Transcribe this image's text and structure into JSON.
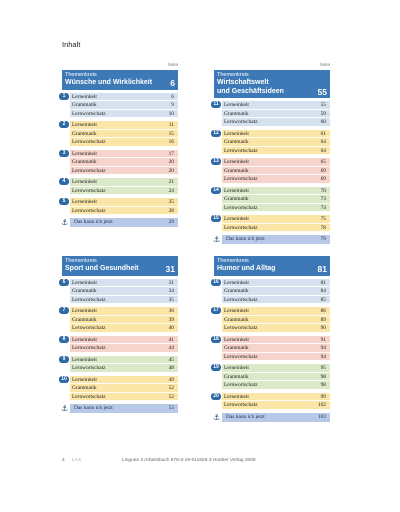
{
  "page_title": "Inhalt",
  "seite_label": "Seite",
  "kann_label": "Das kann ich jetzt",
  "blocks": [
    {
      "kreis": "Themenkreis",
      "name": "Wünsche und Wirklichkeit",
      "name2": "",
      "page": "6",
      "kann_page": "29",
      "units": [
        {
          "num": "1",
          "color": "#d6e1ef",
          "rows": [
            [
              "Lerneinheit",
              "6"
            ],
            [
              "Grammatik",
              "9"
            ],
            [
              "Lernwortschatz",
              "10"
            ]
          ]
        },
        {
          "num": "2",
          "color": "#fbe6a7",
          "rows": [
            [
              "Lerneinheit",
              "11"
            ],
            [
              "Grammatik",
              "15"
            ],
            [
              "Lernwortschatz",
              "16"
            ]
          ]
        },
        {
          "num": "3",
          "color": "#f6d4cb",
          "rows": [
            [
              "Lerneinheit",
              "17"
            ],
            [
              "Grammatik",
              "20"
            ],
            [
              "Lernwortschatz",
              "20"
            ]
          ]
        },
        {
          "num": "4",
          "color": "#dbe9c9",
          "rows": [
            [
              "Lerneinheit",
              "21"
            ],
            [
              "Lernwortschatz",
              "24"
            ]
          ]
        },
        {
          "num": "5",
          "color": "#fbe6a7",
          "rows": [
            [
              "Lerneinheit",
              "25"
            ],
            [
              "Lernwortschatz",
              "28"
            ]
          ]
        }
      ]
    },
    {
      "kreis": "Themenkreis",
      "name": "Wirtschaftswelt",
      "name2": "und Geschäftsideen",
      "page": "55",
      "kann_page": "79",
      "units": [
        {
          "num": "11",
          "color": "#d6e1ef",
          "rows": [
            [
              "Lerneinheit",
              "55"
            ],
            [
              "Grammatik",
              "59"
            ],
            [
              "Lernwortschatz",
              "60"
            ]
          ]
        },
        {
          "num": "12",
          "color": "#fbe6a7",
          "rows": [
            [
              "Lerneinheit",
              "61"
            ],
            [
              "Grammatik",
              "64"
            ],
            [
              "Lernwortschatz",
              "64"
            ]
          ]
        },
        {
          "num": "13",
          "color": "#f6d4cb",
          "rows": [
            [
              "Lerneinheit",
              "65"
            ],
            [
              "Grammatik",
              "69"
            ],
            [
              "Lernwortschatz",
              "69"
            ]
          ]
        },
        {
          "num": "14",
          "color": "#dbe9c9",
          "rows": [
            [
              "Lerneinheit",
              "70"
            ],
            [
              "Grammatik",
              "73"
            ],
            [
              "Lernwortschatz",
              "74"
            ]
          ]
        },
        {
          "num": "15",
          "color": "#fbe6a7",
          "rows": [
            [
              "Lerneinheit",
              "75"
            ],
            [
              "Lernwortschatz",
              "78"
            ]
          ]
        }
      ]
    },
    {
      "kreis": "Themenkreis",
      "name": "Sport und Gesundheit",
      "name2": "",
      "page": "31",
      "kann_page": "53",
      "units": [
        {
          "num": "6",
          "color": "#d6e1ef",
          "rows": [
            [
              "Lerneinheit",
              "31"
            ],
            [
              "Grammatik",
              "34"
            ],
            [
              "Lernwortschatz",
              "35"
            ]
          ]
        },
        {
          "num": "7",
          "color": "#fbe6a7",
          "rows": [
            [
              "Lerneinheit",
              "36"
            ],
            [
              "Grammatik",
              "39"
            ],
            [
              "Lernwortschatz",
              "40"
            ]
          ]
        },
        {
          "num": "8",
          "color": "#f6d4cb",
          "rows": [
            [
              "Lerneinheit",
              "41"
            ],
            [
              "Lernwortschatz",
              "44"
            ]
          ]
        },
        {
          "num": "9",
          "color": "#dbe9c9",
          "rows": [
            [
              "Lerneinheit",
              "45"
            ],
            [
              "Lernwortschatz",
              "48"
            ]
          ]
        },
        {
          "num": "10",
          "color": "#fbe6a7",
          "rows": [
            [
              "Lerneinheit",
              "49"
            ],
            [
              "Grammatik",
              "52"
            ],
            [
              "Lernwortschatz",
              "52"
            ]
          ]
        }
      ]
    },
    {
      "kreis": "Themenkreis",
      "name": "Humor und Alltag",
      "name2": "",
      "page": "81",
      "kann_page": "103",
      "units": [
        {
          "num": "16",
          "color": "#d6e1ef",
          "rows": [
            [
              "Lerneinheit",
              "81"
            ],
            [
              "Grammatik",
              "84"
            ],
            [
              "Lernwortschatz",
              "85"
            ]
          ]
        },
        {
          "num": "17",
          "color": "#fbe6a7",
          "rows": [
            [
              "Lerneinheit",
              "86"
            ],
            [
              "Grammatik",
              "89"
            ],
            [
              "Lernwortschatz",
              "90"
            ]
          ]
        },
        {
          "num": "18",
          "color": "#f6d4cb",
          "rows": [
            [
              "Lerneinheit",
              "91"
            ],
            [
              "Grammatik",
              "94"
            ],
            [
              "Lernwortschatz",
              "94"
            ]
          ]
        },
        {
          "num": "19",
          "color": "#dbe9c9",
          "rows": [
            [
              "Lerneinheit",
              "95"
            ],
            [
              "Grammatik",
              "98"
            ],
            [
              "Lernwortschatz",
              "98"
            ]
          ]
        },
        {
          "num": "20",
          "color": "#fbe6a7",
          "rows": [
            [
              "Lerneinheit",
              "99"
            ],
            [
              "Lernwortschatz",
              "102"
            ]
          ]
        }
      ]
    }
  ],
  "footer": {
    "page_num": "4",
    "mark": "LAS",
    "publisher": "Linguee 3 Arbeitsbuch   978-3-19-011926-3   Hueber Verlag 2008"
  }
}
